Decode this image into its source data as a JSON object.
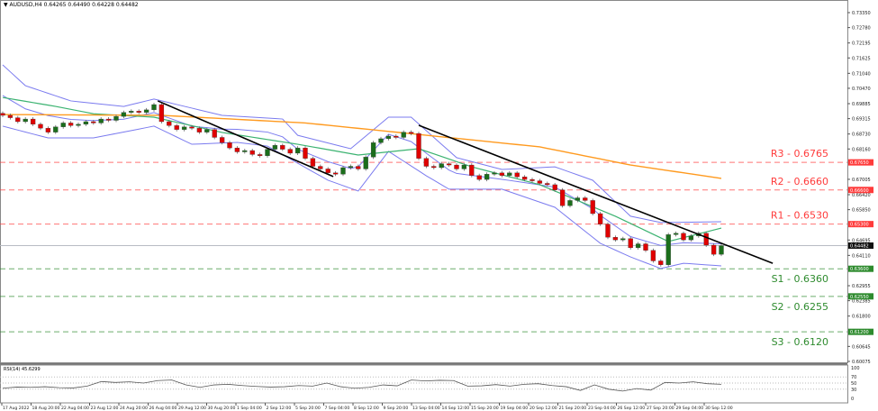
{
  "header": {
    "symbol": "AUDUSD,H4",
    "ohlc": "0.64265 0.64490 0.64228 0.64482"
  },
  "rsi_label": "RSI(14) 45.6299",
  "chart_data": {
    "type": "candlestick",
    "symbol": "AUDUSD",
    "timeframe": "H4",
    "ylim": [
      0.6005,
      0.734
    ],
    "grid": false,
    "y_ticks": [
      "0.73350",
      "0.72780",
      "0.72195",
      "0.71625",
      "0.71040",
      "0.70470",
      "0.69885",
      "0.69315",
      "0.68730",
      "0.68160",
      "0.67005",
      "0.66420",
      "0.65850",
      "0.64695",
      "0.64110",
      "0.62955",
      "0.62385",
      "0.61800",
      "0.60645",
      "0.60075"
    ],
    "x_ticks": [
      "17 Aug 2022",
      "18 Aug 20:00",
      "22 Aug 04:00",
      "23 Aug 12:00",
      "24 Aug 20:00",
      "26 Aug 04:00",
      "29 Aug 12:00",
      "30 Aug 20:00",
      "1 Sep 04:00",
      "2 Sep 12:00",
      "5 Sep 20:00",
      "7 Sep 04:00",
      "8 Sep 12:00",
      "9 Sep 20:00",
      "13 Sep 04:00",
      "14 Sep 12:00",
      "15 Sep 20:00",
      "19 Sep 04:00",
      "20 Sep 12:00",
      "21 Sep 20:00",
      "23 Sep 04:00",
      "26 Sep 12:00",
      "27 Sep 20:00",
      "29 Sep 04:00",
      "30 Sep 12:00"
    ],
    "closes": [
      0.6944,
      0.6935,
      0.692,
      0.693,
      0.691,
      0.6895,
      0.688,
      0.69,
      0.6915,
      0.6905,
      0.691,
      0.692,
      0.6915,
      0.693,
      0.6925,
      0.694,
      0.6955,
      0.696,
      0.6955,
      0.6965,
      0.6985,
      0.692,
      0.6905,
      0.689,
      0.69,
      0.6895,
      0.688,
      0.689,
      0.686,
      0.684,
      0.682,
      0.6805,
      0.681,
      0.6795,
      0.679,
      0.6815,
      0.683,
      0.6815,
      0.68,
      0.682,
      0.678,
      0.675,
      0.674,
      0.6725,
      0.672,
      0.6745,
      0.675,
      0.674,
      0.6785,
      0.684,
      0.6855,
      0.6865,
      0.686,
      0.688,
      0.6875,
      0.678,
      0.675,
      0.6745,
      0.676,
      0.6755,
      0.674,
      0.6755,
      0.6715,
      0.67,
      0.672,
      0.6725,
      0.6715,
      0.6725,
      0.671,
      0.67,
      0.6695,
      0.6685,
      0.668,
      0.666,
      0.66,
      0.662,
      0.663,
      0.662,
      0.657,
      0.653,
      0.648,
      0.647,
      0.6475,
      0.644,
      0.6455,
      0.643,
      0.639,
      0.6375,
      0.649,
      0.6495,
      0.647,
      0.6485,
      0.6495,
      0.645,
      0.6415,
      0.6448
    ],
    "current_price": {
      "value": 0.64482,
      "label": "0.64482"
    },
    "ma_slow": [
      [
        0,
        0.6947
      ],
      [
        21,
        0.6944
      ],
      [
        40,
        0.6915
      ],
      [
        52,
        0.688
      ],
      [
        71,
        0.6824
      ],
      [
        83,
        0.6755
      ],
      [
        95,
        0.6704
      ]
    ],
    "ma_fast": [
      [
        0,
        0.7012
      ],
      [
        7,
        0.6978
      ],
      [
        12,
        0.695
      ],
      [
        20,
        0.6937
      ],
      [
        29,
        0.6879
      ],
      [
        39,
        0.6834
      ],
      [
        47,
        0.6793
      ],
      [
        55,
        0.6817
      ],
      [
        62,
        0.6748
      ],
      [
        71,
        0.668
      ],
      [
        81,
        0.656
      ],
      [
        88,
        0.6464
      ],
      [
        95,
        0.6515
      ]
    ],
    "bollinger_upper": [
      [
        0,
        0.7136
      ],
      [
        3,
        0.7057
      ],
      [
        9,
        0.6999
      ],
      [
        16,
        0.6978
      ],
      [
        20,
        0.7006
      ],
      [
        29,
        0.6944
      ],
      [
        37,
        0.693
      ],
      [
        39,
        0.6868
      ],
      [
        46,
        0.6817
      ],
      [
        51,
        0.6937
      ],
      [
        54,
        0.6937
      ],
      [
        60,
        0.6783
      ],
      [
        66,
        0.6738
      ],
      [
        73,
        0.6748
      ],
      [
        78,
        0.6697
      ],
      [
        83,
        0.656
      ],
      [
        87,
        0.6536
      ],
      [
        95,
        0.6539
      ]
    ],
    "bollinger_lower": [
      [
        0,
        0.6903
      ],
      [
        6,
        0.6858
      ],
      [
        12,
        0.6858
      ],
      [
        20,
        0.6903
      ],
      [
        25,
        0.6834
      ],
      [
        31,
        0.6841
      ],
      [
        35,
        0.6827
      ],
      [
        43,
        0.6697
      ],
      [
        47,
        0.6656
      ],
      [
        51,
        0.6807
      ],
      [
        56,
        0.6714
      ],
      [
        59,
        0.6663
      ],
      [
        66,
        0.6663
      ],
      [
        73,
        0.6594
      ],
      [
        79,
        0.6457
      ],
      [
        83,
        0.6405
      ],
      [
        87,
        0.6361
      ],
      [
        90,
        0.6381
      ],
      [
        95,
        0.6371
      ]
    ],
    "trendlines": [
      [
        [
          20.5,
          0.6999
        ],
        [
          43.7,
          0.6711
        ]
      ],
      [
        [
          55,
          0.6906
        ],
        [
          101.8,
          0.6381
        ]
      ]
    ],
    "levels": [
      {
        "label": "R3 - 0.6765",
        "value": 0.6765,
        "tag": "0.67650",
        "type": "resistance"
      },
      {
        "label": "R2 - 0.6660",
        "value": 0.666,
        "tag": "0.66600",
        "type": "resistance"
      },
      {
        "label": "R1 - 0.6530",
        "value": 0.653,
        "tag": "0.65300",
        "type": "resistance"
      },
      {
        "label": "S1 - 0.6360",
        "value": 0.636,
        "tag": "0.63600",
        "type": "support"
      },
      {
        "label": "S2 - 0.6255",
        "value": 0.6255,
        "tag": "0.62550",
        "type": "support"
      },
      {
        "label": "S3 - 0.6120",
        "value": 0.612,
        "tag": "0.61200",
        "type": "support"
      }
    ],
    "rsi": {
      "period": 14,
      "value": 45.6299,
      "ticks": [
        "100",
        "70",
        "50",
        "30",
        "0"
      ],
      "levels": [
        70,
        50,
        30
      ],
      "values": [
        33,
        37,
        36,
        38,
        35,
        34,
        40,
        55,
        52,
        54,
        50,
        58,
        60,
        44,
        36,
        44,
        46,
        42,
        39,
        37,
        38,
        42,
        40,
        50,
        38,
        33,
        36,
        44,
        41,
        60,
        57,
        59,
        58,
        40,
        41,
        45,
        40,
        46,
        48,
        42,
        38,
        26,
        44,
        30,
        24,
        32,
        27,
        52,
        50,
        54,
        48,
        46
      ]
    },
    "colors": {
      "bull": "#1b6e1b",
      "bear": "#e00000",
      "ma_slow": "#ff9a1f",
      "ma_fast": "#3cb371",
      "bollinger": "#7b7bef",
      "resistance": "#ff3b3b",
      "support": "#2e8b2e",
      "trendline": "#000000"
    }
  }
}
